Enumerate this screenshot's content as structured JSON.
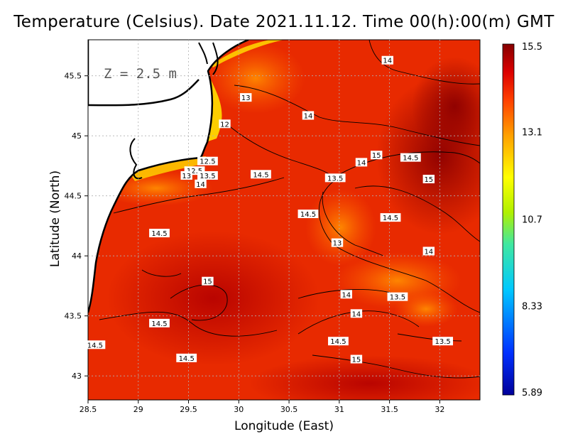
{
  "chart_data": {
    "type": "heatmap",
    "title": "Temperature (Celsius). Date 2021.11.12. Time 00(h):00(m)  GMT",
    "xlabel": "Longitude (East)",
    "ylabel": "Latitude (North)",
    "xlim": [
      28.5,
      32.4
    ],
    "ylim": [
      42.8,
      45.8
    ],
    "x_ticks": [
      "28.5",
      "29",
      "29.5",
      "30",
      "30.5",
      "31",
      "31.5",
      "32"
    ],
    "y_ticks": [
      "43",
      "43.5",
      "44",
      "44.5",
      "45",
      "45.5"
    ],
    "grid": true,
    "annotation": "Z = 2.5 m",
    "colorbar": {
      "min": 5.89,
      "max": 15.5,
      "tick_labels": [
        "15.5",
        "13.1",
        "10.7",
        "8.33",
        "5.89"
      ],
      "tick_values": [
        15.5,
        13.1,
        10.7,
        8.33,
        5.89
      ],
      "colors": [
        "#0000aa",
        "#0040ff",
        "#00c0ff",
        "#40e0a0",
        "#a0f000",
        "#ffff00",
        "#ffa000",
        "#ff5000",
        "#e00000",
        "#8a0000"
      ]
    },
    "contour_labels": [
      {
        "text": "14",
        "lon": 31.48,
        "lat": 45.63
      },
      {
        "text": "13",
        "lon": 30.07,
        "lat": 45.32
      },
      {
        "text": "14",
        "lon": 30.69,
        "lat": 45.17
      },
      {
        "text": "12",
        "lon": 29.86,
        "lat": 45.1
      },
      {
        "text": "12.5",
        "lon": 29.69,
        "lat": 44.79
      },
      {
        "text": "12.5",
        "lon": 29.56,
        "lat": 44.71
      },
      {
        "text": "13",
        "lon": 29.48,
        "lat": 44.67
      },
      {
        "text": "13.5",
        "lon": 29.69,
        "lat": 44.67
      },
      {
        "text": "14",
        "lon": 29.62,
        "lat": 44.6
      },
      {
        "text": "14.5",
        "lon": 30.22,
        "lat": 44.68
      },
      {
        "text": "13.5",
        "lon": 30.96,
        "lat": 44.65
      },
      {
        "text": "15",
        "lon": 31.37,
        "lat": 44.84
      },
      {
        "text": "14",
        "lon": 31.22,
        "lat": 44.78
      },
      {
        "text": "14.5",
        "lon": 31.71,
        "lat": 44.82
      },
      {
        "text": "15",
        "lon": 31.89,
        "lat": 44.64
      },
      {
        "text": "14.5",
        "lon": 30.69,
        "lat": 44.35
      },
      {
        "text": "14.5",
        "lon": 31.51,
        "lat": 44.32
      },
      {
        "text": "13",
        "lon": 30.98,
        "lat": 44.11
      },
      {
        "text": "14",
        "lon": 31.89,
        "lat": 44.04
      },
      {
        "text": "14.5",
        "lon": 29.21,
        "lat": 44.19
      },
      {
        "text": "15",
        "lon": 29.69,
        "lat": 43.79
      },
      {
        "text": "14",
        "lon": 31.07,
        "lat": 43.68
      },
      {
        "text": "13.5",
        "lon": 31.58,
        "lat": 43.66
      },
      {
        "text": "14",
        "lon": 31.17,
        "lat": 43.52
      },
      {
        "text": "14.5",
        "lon": 29.21,
        "lat": 43.44
      },
      {
        "text": "14.5",
        "lon": 30.99,
        "lat": 43.29
      },
      {
        "text": "13.5",
        "lon": 32.03,
        "lat": 43.29
      },
      {
        "text": "14.5",
        "lon": 28.57,
        "lat": 43.26
      },
      {
        "text": "14.5",
        "lon": 29.48,
        "lat": 43.15
      },
      {
        "text": "15",
        "lon": 31.17,
        "lat": 43.14
      }
    ]
  }
}
